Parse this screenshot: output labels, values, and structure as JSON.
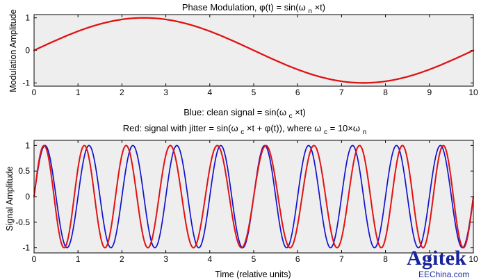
{
  "charts": {
    "top": {
      "title": {
        "prefix": "Phase Modulation, φ(t) = sin(ω",
        "sub": "n",
        "suffix": "×t)"
      },
      "ylabel": "Modulation Amplitude"
    },
    "bottom": {
      "title": {
        "line1": {
          "prefix": "Blue: clean signal = sin(ω",
          "sub": "c",
          "suffix": "×t)"
        },
        "line2": {
          "part1": "Red: signal with jitter = sin(ω",
          "sub1": "c",
          "part2": "×t + φ(t)), where ω",
          "sub2": "c",
          "part3": " = 10×ω",
          "sub3": "n"
        }
      },
      "ylabel": "Signal Amplitude",
      "xlabel": "Time (relative units)"
    }
  },
  "watermark": {
    "main": "Agitek",
    "sub": "EEChina.com"
  },
  "chart_data": [
    {
      "type": "line",
      "xlim": [
        0,
        10
      ],
      "ylim": [
        -1.1,
        1.1
      ],
      "xticks": [
        0,
        1,
        2,
        3,
        4,
        5,
        6,
        7,
        8,
        9,
        10
      ],
      "yticks": [
        1,
        0,
        -1
      ],
      "grid": false,
      "background": "#efeeee",
      "series": [
        {
          "color": "#e01212",
          "style": "solid",
          "sample_step": 0.05,
          "formula": "y = sin(2*pi*x/10)"
        }
      ]
    },
    {
      "type": "line",
      "xlim": [
        0,
        10
      ],
      "ylim": [
        -1.1,
        1.1
      ],
      "xticks": [
        0,
        1,
        2,
        3,
        4,
        5,
        6,
        7,
        8,
        9,
        10
      ],
      "yticks": [
        1,
        0.5,
        0,
        -0.5,
        -1
      ],
      "grid": false,
      "background": "#efeeee",
      "series": [
        {
          "color": "#1111cc",
          "style": "solid",
          "sample_step": 0.02,
          "formula": "y = sin(2*pi*x)"
        },
        {
          "color": "#e01212",
          "style": "dotted",
          "sample_step": 0.02,
          "formula": "y = sin(2*pi*x + sin(2*pi*x/10))"
        }
      ]
    }
  ]
}
